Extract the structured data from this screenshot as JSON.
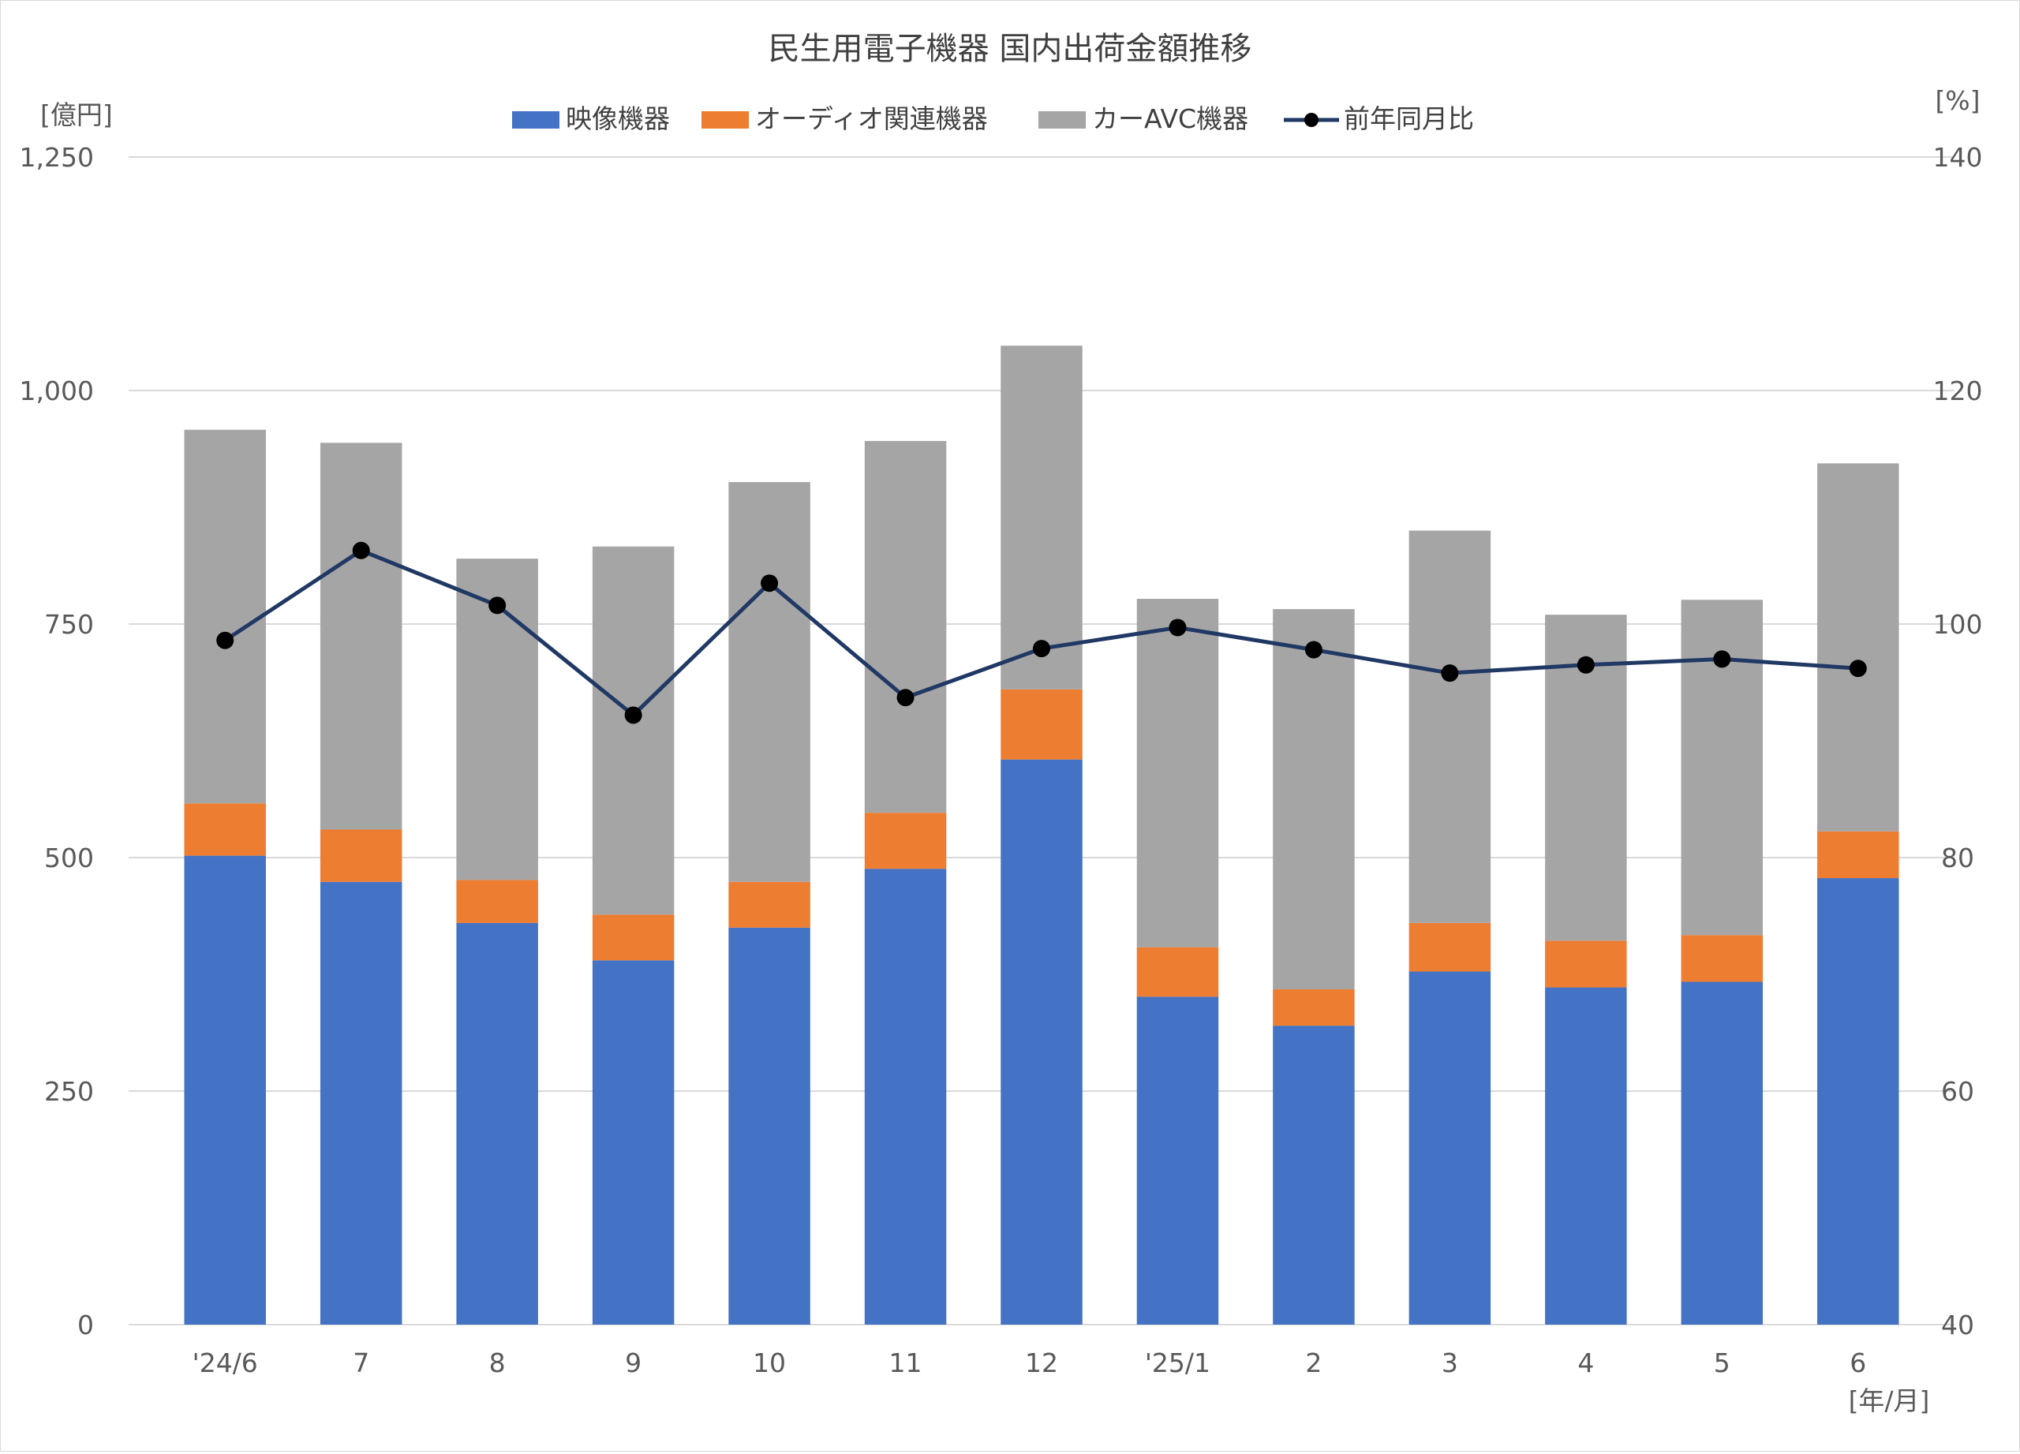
{
  "chart_data": {
    "type": "bar",
    "stacked": true,
    "title": "民生用電子機器 国内出荷金額推移",
    "y_unit_left": "[億円]",
    "y_unit_right": "[%]",
    "x_unit": "[年/月]",
    "categories": [
      "'24/6",
      "7",
      "8",
      "9",
      "10",
      "11",
      "12",
      "'25/1",
      "2",
      "3",
      "4",
      "5",
      "6"
    ],
    "ylim_left": [
      0,
      1250
    ],
    "yticks_left": [
      0,
      250,
      500,
      750,
      1000,
      1250
    ],
    "yticks_left_labels": [
      "0",
      "250",
      "500",
      "750",
      "1,000",
      "1,250"
    ],
    "ylim_right": [
      40,
      140
    ],
    "yticks_right": [
      40,
      60,
      80,
      100,
      120,
      140
    ],
    "yticks_right_labels": [
      "40",
      "60",
      "80",
      "100",
      "120",
      "140"
    ],
    "grid": true,
    "legend_position": "top",
    "series": [
      {
        "name": "映像機器",
        "kind": "bar",
        "axis": "left",
        "color": "#4472C4",
        "values": [
          502,
          474,
          430,
          390,
          425,
          488,
          605,
          351,
          320,
          378,
          361,
          367,
          478
        ]
      },
      {
        "name": "オーディオ関連機器",
        "kind": "bar",
        "axis": "left",
        "color": "#ED7D31",
        "values": [
          56,
          56,
          46,
          49,
          49,
          60,
          75,
          53,
          39,
          52,
          50,
          50,
          50
        ]
      },
      {
        "name": "カーAVC機器",
        "kind": "bar",
        "axis": "left",
        "color": "#A5A5A5",
        "values": [
          400,
          414,
          344,
          394,
          428,
          398,
          368,
          373,
          407,
          420,
          349,
          359,
          394
        ]
      },
      {
        "name": "前年同月比",
        "kind": "line",
        "axis": "right",
        "color": "#203864",
        "values": [
          98.6,
          106.3,
          101.6,
          92.2,
          103.5,
          93.7,
          97.9,
          99.7,
          97.8,
          95.8,
          96.5,
          97.0,
          96.2
        ]
      }
    ]
  }
}
